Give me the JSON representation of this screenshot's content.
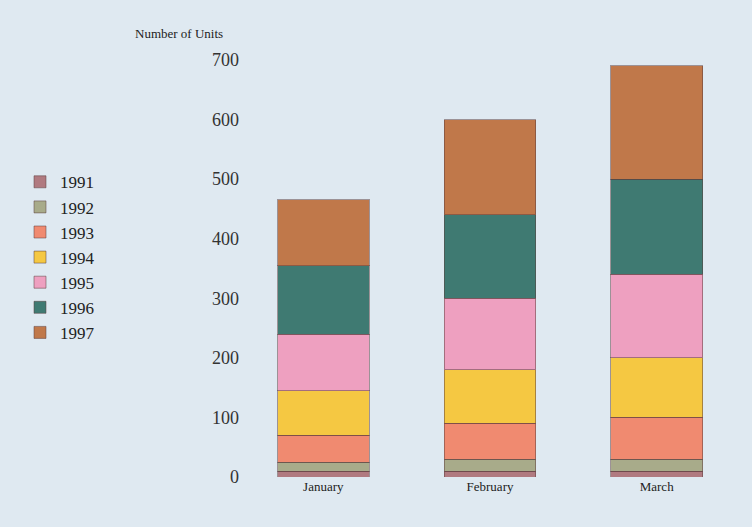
{
  "chart_data": {
    "type": "bar",
    "stacked": true,
    "y_label": "Number of Units",
    "categories": [
      "January",
      "February",
      "March"
    ],
    "series": [
      {
        "name": "1991",
        "color": "#b07a80",
        "values": [
          10,
          10,
          10
        ]
      },
      {
        "name": "1992",
        "color": "#a8ab8a",
        "values": [
          15,
          20,
          20
        ]
      },
      {
        "name": "1993",
        "color": "#f08a70",
        "values": [
          45,
          60,
          70
        ]
      },
      {
        "name": "1994",
        "color": "#f5c842",
        "values": [
          75,
          90,
          100
        ]
      },
      {
        "name": "1995",
        "color": "#eea0c0",
        "values": [
          95,
          120,
          140
        ]
      },
      {
        "name": "1996",
        "color": "#3f7a72",
        "values": [
          115,
          140,
          160
        ]
      },
      {
        "name": "1997",
        "color": "#c0784a",
        "values": [
          110,
          160,
          190
        ]
      }
    ],
    "ylim": [
      0,
      700
    ],
    "yticks": [
      0,
      100,
      200,
      300,
      400,
      500,
      600,
      700
    ],
    "grid": false,
    "legend": "left"
  }
}
